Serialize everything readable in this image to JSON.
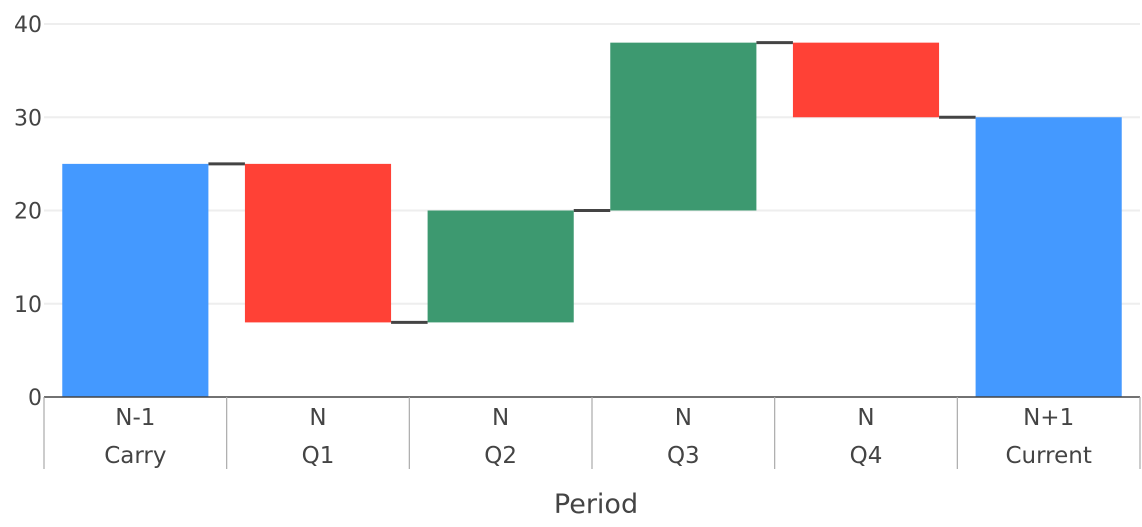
{
  "chart_data": {
    "type": "waterfall",
    "xlabel": "Period",
    "ylabel": "",
    "ylim": [
      0,
      40
    ],
    "y_ticks": [
      0,
      10,
      20,
      30,
      40
    ],
    "grid": true,
    "legend": "none",
    "categories": [
      {
        "group": "N-1",
        "label": "Carry"
      },
      {
        "group": "N",
        "label": "Q1"
      },
      {
        "group": "N",
        "label": "Q2"
      },
      {
        "group": "N",
        "label": "Q3"
      },
      {
        "group": "N",
        "label": "Q4"
      },
      {
        "group": "N+1",
        "label": "Current"
      }
    ],
    "bars": [
      {
        "kind": "total",
        "base": 0,
        "value": 25
      },
      {
        "kind": "decrease",
        "base": 25,
        "value": -17
      },
      {
        "kind": "increase",
        "base": 8,
        "value": 12
      },
      {
        "kind": "increase",
        "base": 20,
        "value": 18
      },
      {
        "kind": "decrease",
        "base": 38,
        "value": -8
      },
      {
        "kind": "total",
        "base": 0,
        "value": 30
      }
    ],
    "colors": {
      "total": "#4499ff",
      "increase": "#3d9970",
      "decrease": "#ff4136",
      "connector": "#444444",
      "grid": "#eeeeee",
      "axis": "#444444"
    }
  }
}
